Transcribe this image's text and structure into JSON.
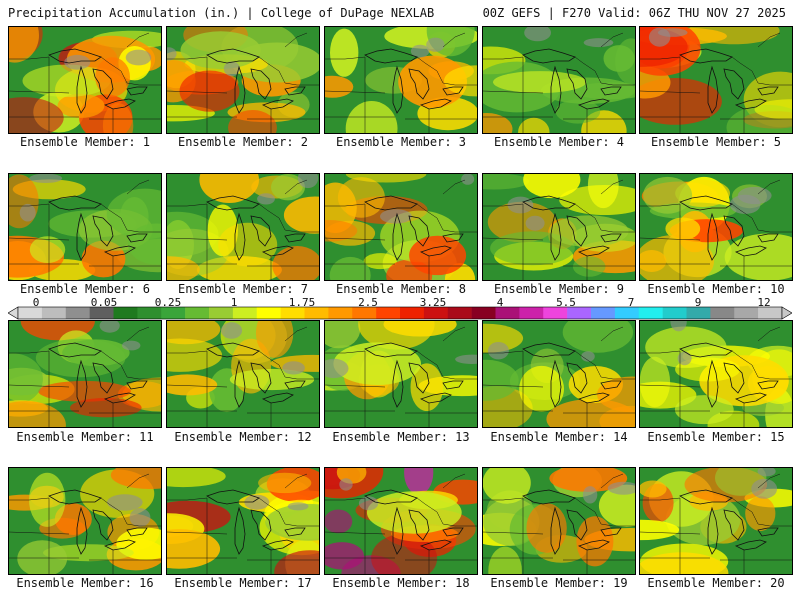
{
  "header": {
    "left": "Precipitation Accumulation (in.) | College of DuPage NEXLAB",
    "right": "00Z GEFS | F270 Valid: 06Z THU NOV 27 2025"
  },
  "colorbar": {
    "tick_labels": [
      "0",
      "0.05",
      "0.25",
      "1",
      "1.75",
      "2.5",
      "3.25",
      "4",
      "5.5",
      "7",
      "9",
      "12"
    ],
    "colors": [
      "#d9d9d9",
      "#bdbdbd",
      "#8f8f8f",
      "#5f5f5f",
      "#1f7a1f",
      "#2f8f2f",
      "#3aa53a",
      "#66bb33",
      "#99cc33",
      "#ccee22",
      "#ffff00",
      "#ffdd00",
      "#ffbb00",
      "#ff9900",
      "#ff7700",
      "#ff4400",
      "#ee2200",
      "#cc1111",
      "#aa0a1a",
      "#880022",
      "#aa1177",
      "#cc22aa",
      "#ee44dd",
      "#aa66ff",
      "#6699ff",
      "#33ccff",
      "#22eeee",
      "#22cccc",
      "#33aaaa",
      "#888888",
      "#a8a8a8",
      "#c8c8c8"
    ]
  },
  "panels": [
    {
      "label": "Ensemble Member: 1",
      "intensity": 0.75
    },
    {
      "label": "Ensemble Member: 2",
      "intensity": 0.7
    },
    {
      "label": "Ensemble Member: 3",
      "intensity": 0.3
    },
    {
      "label": "Ensemble Member: 4",
      "intensity": 0.35
    },
    {
      "label": "Ensemble Member: 5",
      "intensity": 0.6
    },
    {
      "label": "Ensemble Member: 6",
      "intensity": 0.6
    },
    {
      "label": "Ensemble Member: 7",
      "intensity": 0.45
    },
    {
      "label": "Ensemble Member: 8",
      "intensity": 0.55
    },
    {
      "label": "Ensemble Member: 9",
      "intensity": 0.4
    },
    {
      "label": "Ensemble Member: 10",
      "intensity": 0.5
    },
    {
      "label": "Ensemble Member: 11",
      "intensity": 0.6
    },
    {
      "label": "Ensemble Member: 12",
      "intensity": 0.3
    },
    {
      "label": "Ensemble Member: 13",
      "intensity": 0.3
    },
    {
      "label": "Ensemble Member: 14",
      "intensity": 0.35
    },
    {
      "label": "Ensemble Member: 15",
      "intensity": 0.5
    },
    {
      "label": "Ensemble Member: 16",
      "intensity": 0.45
    },
    {
      "label": "Ensemble Member: 17",
      "intensity": 0.8
    },
    {
      "label": "Ensemble Member: 18",
      "intensity": 0.95
    },
    {
      "label": "Ensemble Member: 19",
      "intensity": 0.6
    },
    {
      "label": "Ensemble Member: 20",
      "intensity": 0.5
    }
  ]
}
